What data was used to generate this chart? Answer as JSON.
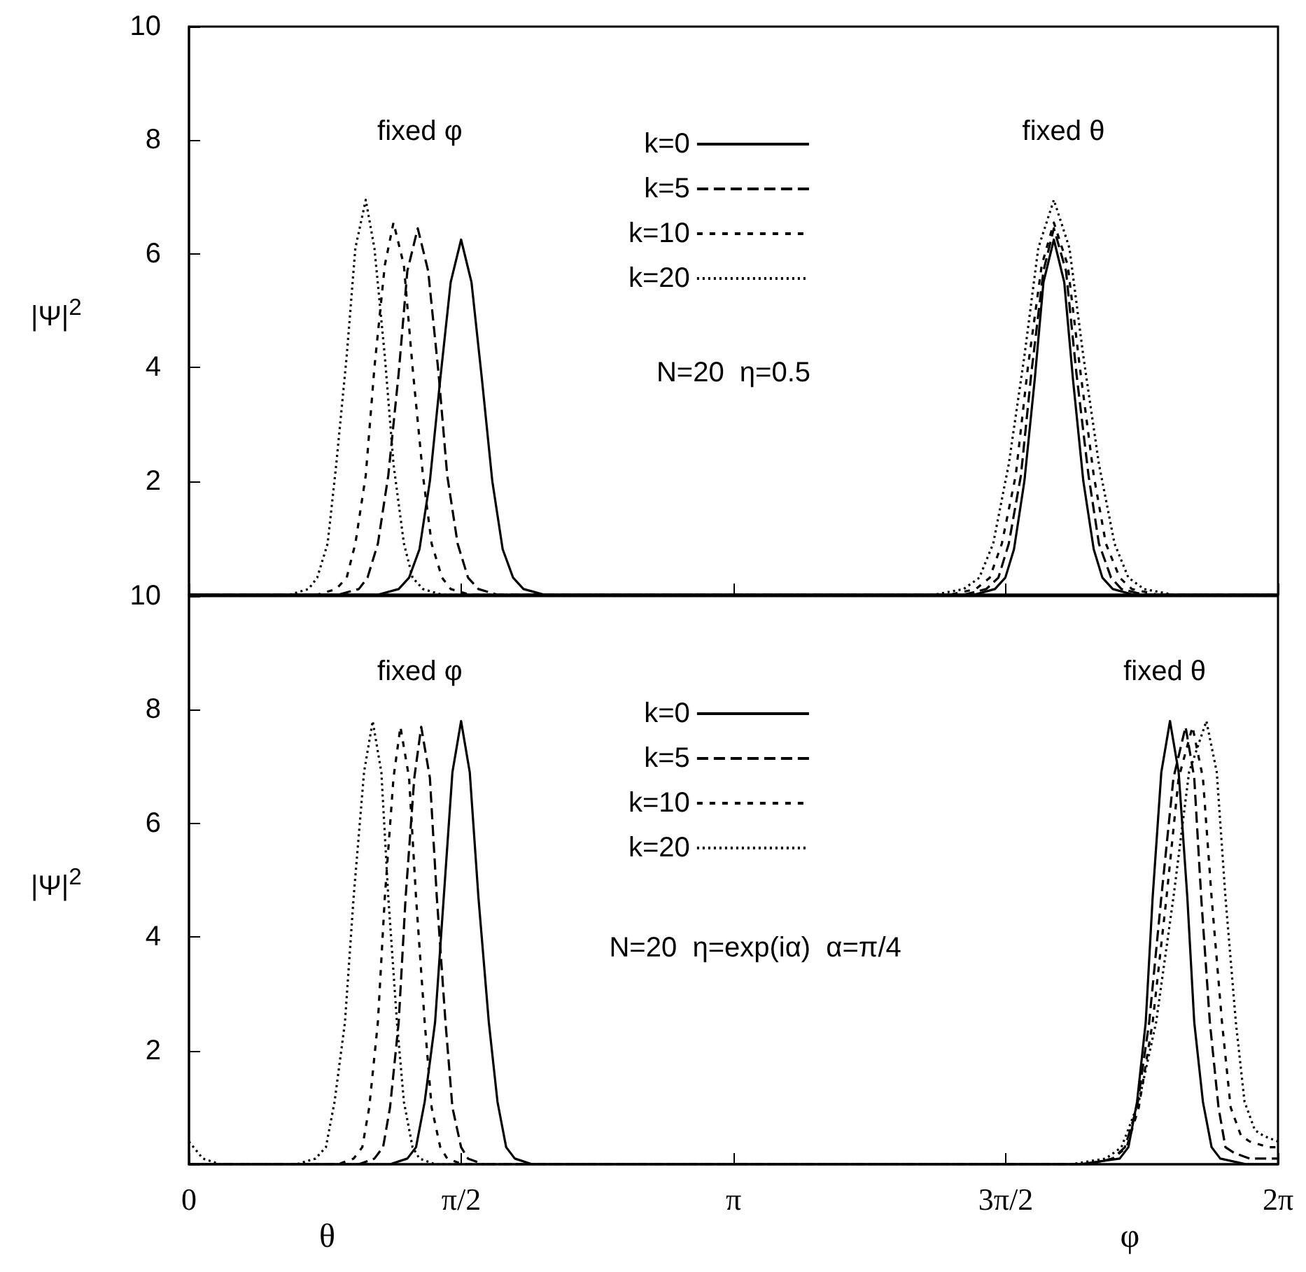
{
  "chart_data": [
    {
      "type": "line",
      "ylabel": "|Ψ|$^{2}$",
      "xlim": [
        0,
        6.2832
      ],
      "ylim": [
        0,
        10
      ],
      "xticks": [
        {
          "value": 0,
          "label": null
        },
        {
          "value": 1.5708,
          "label": null
        },
        {
          "value": 3.1416,
          "label": null
        },
        {
          "value": 4.7124,
          "label": null
        },
        {
          "value": 6.2832,
          "label": null
        }
      ],
      "yticks": [
        {
          "value": 0,
          "label": null
        },
        2,
        4,
        6,
        8,
        10
      ],
      "tick_labels": "y",
      "legend": "top",
      "grid": false,
      "annotations": [
        "fixed φ",
        "fixed θ",
        "N=20  η=0.5"
      ],
      "series": [
        {
          "name": "k=0",
          "color": "#000000",
          "line_style": "solid",
          "x": [
            0,
            1.09,
            1.21,
            1.27,
            1.33,
            1.39,
            1.45,
            1.51,
            1.57,
            1.63,
            1.69,
            1.75,
            1.81,
            1.87,
            1.93,
            2.05,
            4.53,
            4.65,
            4.71,
            4.76,
            4.82,
            4.88,
            4.93,
            4.99,
            5.05,
            5.1,
            5.16,
            5.22,
            5.27,
            5.33,
            5.45,
            6.2832
          ],
          "values": [
            0,
            0,
            0.1,
            0.3,
            0.8,
            2.0,
            3.8,
            5.5,
            6.25,
            5.5,
            3.8,
            2.0,
            0.8,
            0.3,
            0.1,
            0,
            0,
            0.1,
            0.3,
            0.8,
            2.0,
            3.8,
            5.5,
            6.25,
            5.5,
            3.8,
            2.0,
            0.8,
            0.3,
            0.1,
            0,
            0
          ]
        },
        {
          "name": "k=5",
          "color": "#000000",
          "line_style": "dashed",
          "x": [
            0,
            0.86,
            0.98,
            1.03,
            1.09,
            1.15,
            1.21,
            1.26,
            1.32,
            1.38,
            1.44,
            1.49,
            1.55,
            1.61,
            1.67,
            1.78,
            4.47,
            4.6,
            4.67,
            4.73,
            4.8,
            4.86,
            4.93,
            4.99,
            5.06,
            5.12,
            5.19,
            5.25,
            5.32,
            5.38,
            5.51,
            6.2832
          ],
          "values": [
            0,
            0,
            0.1,
            0.3,
            0.9,
            2.1,
            3.9,
            5.7,
            6.45,
            5.7,
            3.9,
            2.1,
            0.9,
            0.3,
            0.1,
            0,
            0,
            0.1,
            0.3,
            0.9,
            2.1,
            3.9,
            5.7,
            6.45,
            5.7,
            3.9,
            2.1,
            0.9,
            0.3,
            0.1,
            0,
            0
          ]
        },
        {
          "name": "k=10",
          "color": "#000000",
          "line_style": "dashed",
          "x": [
            0,
            0.74,
            0.85,
            0.91,
            0.96,
            1.02,
            1.07,
            1.13,
            1.18,
            1.24,
            1.29,
            1.35,
            1.4,
            1.46,
            1.51,
            1.62,
            4.39,
            4.54,
            4.62,
            4.69,
            4.77,
            4.84,
            4.92,
            4.99,
            5.07,
            5.14,
            5.22,
            5.29,
            5.37,
            5.44,
            5.59,
            6.2832
          ],
          "values": [
            0,
            0,
            0.1,
            0.3,
            0.9,
            2.1,
            4.0,
            5.8,
            6.55,
            5.8,
            4.0,
            2.1,
            0.9,
            0.3,
            0.1,
            0,
            0,
            0.1,
            0.3,
            0.9,
            2.1,
            4.0,
            5.8,
            6.55,
            5.8,
            4.0,
            2.1,
            0.9,
            0.3,
            0.1,
            0,
            0
          ]
        },
        {
          "name": "k=20",
          "color": "#000000",
          "line_style": "dotted",
          "x": [
            0,
            0.58,
            0.69,
            0.74,
            0.8,
            0.85,
            0.91,
            0.96,
            1.02,
            1.07,
            1.13,
            1.18,
            1.24,
            1.29,
            1.35,
            1.46,
            4.3,
            4.47,
            4.56,
            4.64,
            4.73,
            4.82,
            4.9,
            4.99,
            5.08,
            5.16,
            5.25,
            5.34,
            5.42,
            5.51,
            5.68,
            6.2832
          ],
          "values": [
            0,
            0,
            0.1,
            0.3,
            0.9,
            2.3,
            4.2,
            6.1,
            6.95,
            6.1,
            4.2,
            2.3,
            0.9,
            0.3,
            0.1,
            0,
            0,
            0.1,
            0.3,
            0.9,
            2.3,
            4.2,
            6.1,
            6.95,
            6.1,
            4.2,
            2.3,
            0.9,
            0.3,
            0.1,
            0,
            0
          ]
        }
      ]
    },
    {
      "type": "line",
      "ylabel": "|Ψ|$^{2}$",
      "xlim": [
        0,
        6.2832
      ],
      "ylim": [
        0,
        10
      ],
      "xticks": [
        0,
        {
          "value": 1.5708,
          "label": "π/2"
        },
        {
          "value": 3.1416,
          "label": "π"
        },
        {
          "value": 4.7124,
          "label": "3π/2"
        },
        {
          "value": 6.2832,
          "label": "2π"
        }
      ],
      "yticks": [
        {
          "value": 0,
          "label": null
        },
        2,
        4,
        6,
        8,
        10
      ],
      "legend": "top",
      "grid": false,
      "annotations": [
        "fixed φ",
        "fixed θ",
        "N=20  η=exp(iα)  α=π/4",
        "θ",
        "φ"
      ],
      "series": [
        {
          "name": "k=0",
          "color": "#000000",
          "line_style": "solid",
          "x": [
            0,
            1.16,
            1.26,
            1.31,
            1.36,
            1.42,
            1.47,
            1.52,
            1.57,
            1.62,
            1.67,
            1.73,
            1.78,
            1.83,
            1.88,
            1.98,
            5.14,
            5.37,
            5.42,
            5.47,
            5.52,
            5.56,
            5.61,
            5.66,
            5.71,
            5.76,
            5.8,
            5.85,
            5.9,
            5.95,
            6.1,
            6.2832
          ],
          "values": [
            0,
            0,
            0.1,
            0.3,
            1.1,
            2.5,
            4.7,
            6.9,
            7.8,
            6.9,
            4.7,
            2.5,
            1.1,
            0.3,
            0.1,
            0,
            0,
            0.1,
            0.3,
            1.1,
            2.5,
            4.7,
            6.9,
            7.8,
            6.9,
            4.7,
            2.5,
            1.1,
            0.3,
            0.1,
            0,
            0
          ]
        },
        {
          "name": "k=5",
          "color": "#000000",
          "line_style": "dashed",
          "x": [
            0,
            0.98,
            1.07,
            1.12,
            1.16,
            1.21,
            1.25,
            1.3,
            1.34,
            1.39,
            1.43,
            1.48,
            1.52,
            1.57,
            1.61,
            1.7,
            5.19,
            5.33,
            5.4,
            5.47,
            5.54,
            5.61,
            5.68,
            5.75,
            5.8,
            5.84,
            5.89,
            5.94,
            5.98,
            6.03,
            6.12,
            6.2832
          ],
          "values": [
            0,
            0,
            0.1,
            0.3,
            1.0,
            2.5,
            4.7,
            6.8,
            7.7,
            6.8,
            4.7,
            2.5,
            1.0,
            0.3,
            0.1,
            0,
            0,
            0.1,
            0.3,
            1.0,
            2.5,
            4.7,
            6.8,
            7.7,
            6.8,
            4.7,
            2.5,
            1.0,
            0.3,
            0.2,
            0.1,
            0.1
          ]
        },
        {
          "name": "k=10",
          "color": "#000000",
          "line_style": "dashed",
          "x": [
            0,
            0.86,
            0.95,
            1.0,
            1.04,
            1.09,
            1.13,
            1.18,
            1.22,
            1.27,
            1.31,
            1.36,
            1.4,
            1.45,
            1.49,
            1.58,
            5.18,
            5.33,
            5.41,
            5.48,
            5.56,
            5.64,
            5.71,
            5.79,
            5.85,
            5.9,
            5.96,
            6.01,
            6.07,
            6.12,
            6.23,
            6.2832
          ],
          "values": [
            0,
            0,
            0.1,
            0.3,
            1.0,
            2.5,
            4.7,
            6.8,
            7.7,
            6.8,
            4.7,
            2.5,
            1.0,
            0.3,
            0.1,
            0,
            0,
            0.1,
            0.3,
            1.0,
            2.5,
            4.7,
            6.8,
            7.7,
            6.8,
            4.7,
            2.5,
            1.0,
            0.5,
            0.4,
            0.3,
            0.3
          ]
        },
        {
          "name": "k=20",
          "color": "#000000",
          "line_style": "dotted",
          "x": [
            0,
            0.08,
            0.18,
            0.62,
            0.73,
            0.79,
            0.84,
            0.9,
            0.95,
            1.01,
            1.06,
            1.11,
            1.15,
            1.2,
            1.24,
            1.29,
            1.33,
            1.42,
            5.09,
            5.29,
            5.38,
            5.48,
            5.58,
            5.68,
            5.77,
            5.87,
            5.93,
            5.98,
            6.04,
            6.09,
            6.15,
            6.2,
            6.2832
          ],
          "values": [
            0.4,
            0.1,
            0,
            0,
            0.1,
            0.3,
            1.1,
            2.5,
            4.7,
            6.9,
            7.8,
            6.9,
            4.7,
            2.5,
            1.1,
            0.3,
            0.1,
            0,
            0,
            0.1,
            0.3,
            1.1,
            2.5,
            4.7,
            6.9,
            7.8,
            6.9,
            4.7,
            2.5,
            1.1,
            0.6,
            0.5,
            0.4
          ]
        }
      ]
    }
  ]
}
